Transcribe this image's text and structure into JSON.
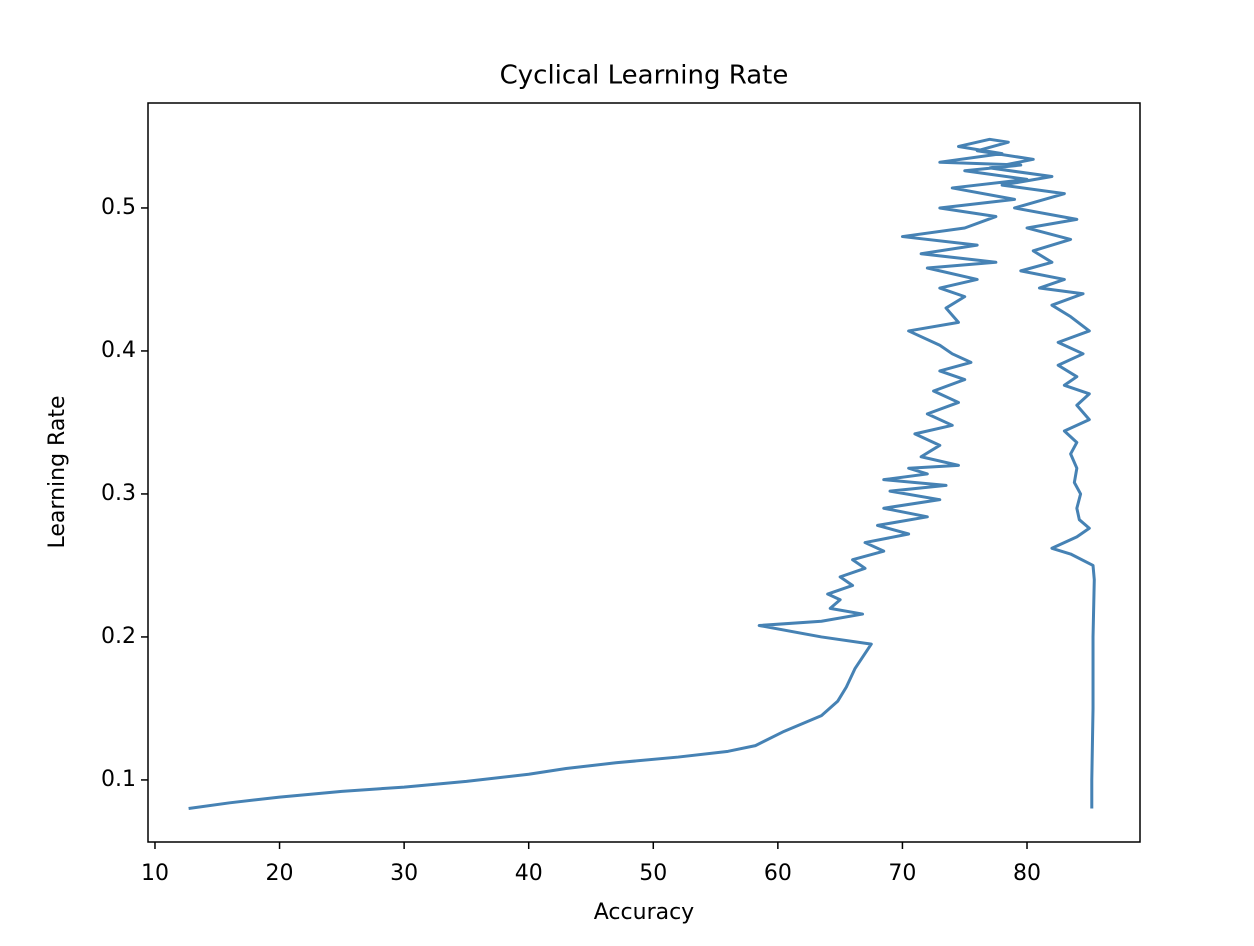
{
  "chart_data": {
    "type": "line",
    "title": "Cyclical Learning Rate",
    "x_label": "Accuracy",
    "y_label": "Learning Rate",
    "xlim": [
      9.44,
      89.07
    ],
    "ylim": [
      0.0566,
      0.5734
    ],
    "xticks": [
      10,
      20,
      30,
      40,
      50,
      60,
      70,
      80
    ],
    "yticks": [
      0.1,
      0.2,
      0.3,
      0.4,
      0.5
    ],
    "series": [
      {
        "color": "#4682b4",
        "x": [
          12.7,
          16,
          20,
          25,
          30,
          35,
          40,
          43,
          47,
          52,
          56,
          58.2,
          60.5,
          63.5,
          64.8,
          65.5,
          66.2,
          67.5,
          63.5,
          58.5,
          63.5,
          66.8,
          64.2,
          65,
          64,
          66,
          65,
          67,
          66,
          68.5,
          67,
          70.5,
          68,
          72,
          68.5,
          73,
          69,
          73.5,
          68.5,
          72,
          70.5,
          74.5,
          71.5,
          73,
          71,
          74,
          72,
          74.5,
          72.5,
          75,
          73,
          75.5,
          74,
          73,
          70.5,
          74.5,
          73.5,
          75,
          73,
          76,
          72,
          77.5,
          71.5,
          76,
          70,
          75,
          77.5,
          73,
          79,
          74,
          80,
          75,
          79.5,
          73,
          78,
          74.5,
          77,
          78.5,
          76,
          80.5,
          77,
          82,
          78,
          83,
          79,
          84,
          80,
          83.5,
          80.5,
          82,
          79.5,
          83,
          81,
          84.5,
          82,
          83.5,
          85,
          82.5,
          84.5,
          82.5,
          84,
          83,
          85,
          84,
          85,
          83,
          84,
          83.5,
          84,
          83.8,
          84.3,
          84,
          84.2,
          85,
          84,
          82,
          83.5,
          85.3,
          85.4,
          85.3,
          85.3,
          85.2,
          85.2
        ],
        "values": [
          0.08,
          0.084,
          0.088,
          0.092,
          0.095,
          0.099,
          0.104,
          0.108,
          0.112,
          0.116,
          0.12,
          0.124,
          0.134,
          0.145,
          0.155,
          0.165,
          0.178,
          0.195,
          0.2,
          0.208,
          0.211,
          0.216,
          0.22,
          0.226,
          0.23,
          0.236,
          0.242,
          0.248,
          0.254,
          0.26,
          0.266,
          0.272,
          0.278,
          0.284,
          0.29,
          0.296,
          0.302,
          0.306,
          0.31,
          0.314,
          0.318,
          0.32,
          0.326,
          0.334,
          0.342,
          0.348,
          0.356,
          0.364,
          0.372,
          0.38,
          0.386,
          0.392,
          0.398,
          0.404,
          0.414,
          0.42,
          0.43,
          0.438,
          0.444,
          0.45,
          0.458,
          0.462,
          0.468,
          0.474,
          0.48,
          0.486,
          0.494,
          0.5,
          0.506,
          0.514,
          0.52,
          0.526,
          0.53,
          0.532,
          0.538,
          0.543,
          0.548,
          0.546,
          0.54,
          0.534,
          0.528,
          0.522,
          0.516,
          0.51,
          0.5,
          0.492,
          0.486,
          0.478,
          0.47,
          0.462,
          0.456,
          0.45,
          0.444,
          0.44,
          0.432,
          0.424,
          0.414,
          0.406,
          0.398,
          0.39,
          0.382,
          0.376,
          0.37,
          0.362,
          0.352,
          0.344,
          0.336,
          0.328,
          0.318,
          0.308,
          0.3,
          0.29,
          0.282,
          0.276,
          0.27,
          0.262,
          0.258,
          0.25,
          0.24,
          0.2,
          0.15,
          0.1,
          0.08
        ]
      }
    ]
  }
}
